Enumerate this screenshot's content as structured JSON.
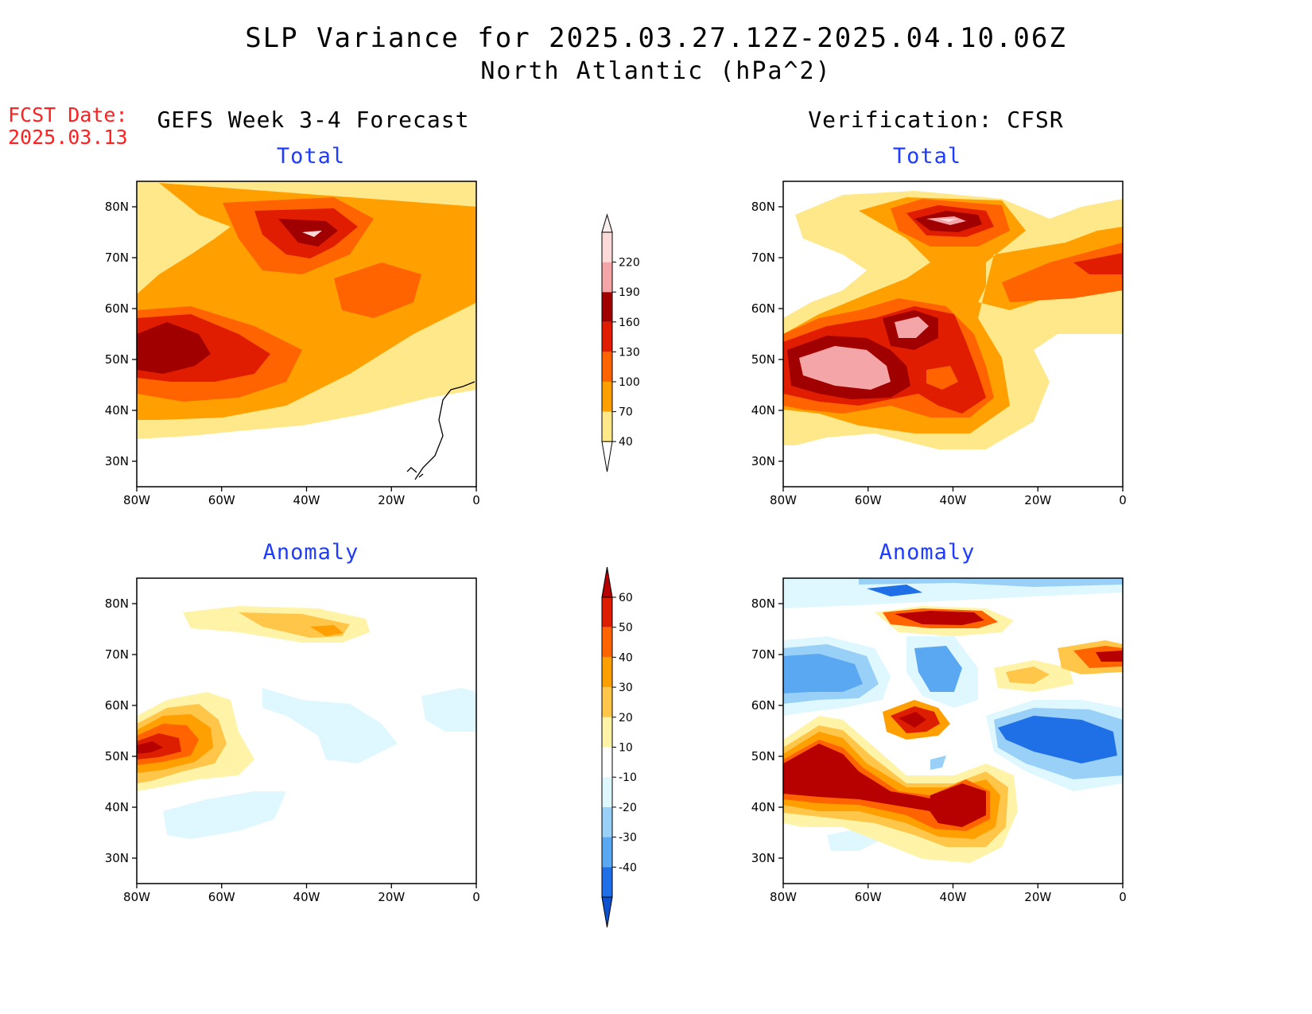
{
  "title": "SLP Variance for 2025.03.27.12Z-2025.04.10.06Z",
  "subtitle": "North Atlantic (hPa^2)",
  "forecast_date": {
    "label": "FCST Date:",
    "value": "2025.03.13"
  },
  "columns": {
    "left": "GEFS Week 3-4 Forecast",
    "right": "Verification: CFSR"
  },
  "panel_labels": {
    "total": "Total",
    "anomaly": "Anomaly"
  },
  "axes": {
    "lon_ticks": [
      "80W",
      "60W",
      "40W",
      "20W",
      "0"
    ],
    "lat_ticks": [
      "80N",
      "70N",
      "60N",
      "50N",
      "40N",
      "30N"
    ],
    "lon_range": [
      -80,
      0
    ],
    "lat_range": [
      25,
      85
    ]
  },
  "colorbars": {
    "total": {
      "levels": [
        "40",
        "70",
        "100",
        "130",
        "160",
        "190",
        "220"
      ],
      "colors": [
        "#fee88a",
        "#ffa000",
        "#ff6400",
        "#e01d00",
        "#a00000",
        "#f4a5a8",
        "#fcdada"
      ]
    },
    "anomaly": {
      "levels": [
        "60",
        "50",
        "40",
        "30",
        "20",
        "10",
        "-10",
        "-20",
        "-30",
        "-40"
      ],
      "colors": [
        "#b70000",
        "#de1e00",
        "#ff6400",
        "#ff9f00",
        "#ffc64a",
        "#fff3a8",
        "#ffffff",
        "#dff8ff",
        "#99d0f8",
        "#5aa8f2",
        "#1f6fe6",
        "#0b52d0"
      ]
    }
  },
  "colors": {
    "title_accent": "#1d3cff",
    "fcst": "#ff2020",
    "coast": "#000000"
  }
}
